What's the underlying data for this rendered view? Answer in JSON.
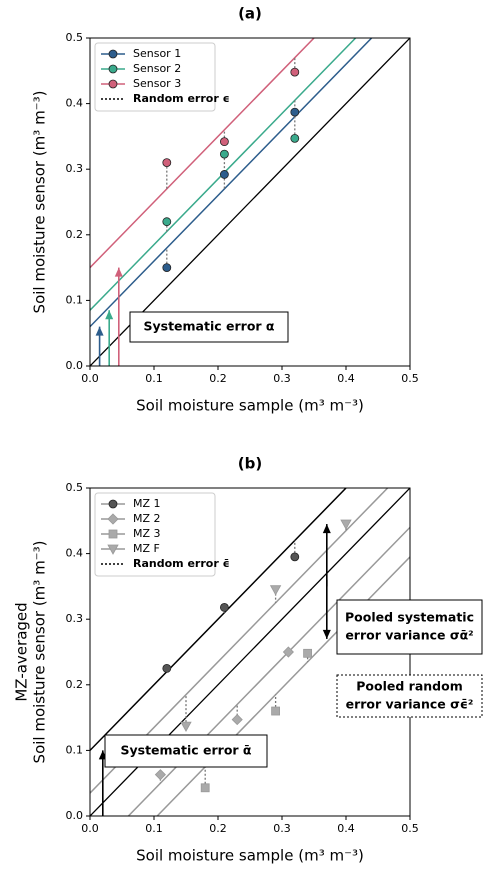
{
  "chart_data": [
    {
      "type": "scatter",
      "title": "(a)",
      "xlabel": "Soil moisture sample (m³ m⁻³)",
      "ylabel": [
        "Soil moisture sensor (m³ m⁻³)"
      ],
      "xlim": [
        0,
        0.5
      ],
      "ylim": [
        0,
        0.5
      ],
      "xticks": [
        {
          "value": 0,
          "label": "0.0"
        },
        0.1,
        0.2,
        0.3,
        0.4,
        0.5
      ],
      "yticks": [
        {
          "value": 0,
          "label": "0.0"
        },
        0.1,
        0.2,
        0.3,
        0.4,
        0.5
      ],
      "legend": "upper left",
      "one_to_one": true,
      "series": [
        {
          "name": "Sensor 1",
          "color": "#2d5d8c",
          "line_color": "#2d5d8c",
          "marker": "circle",
          "x": [
            0.12,
            0.21,
            0.32
          ],
          "values": [
            0.15,
            0.292,
            0.387
          ],
          "intercept": 0.06
        },
        {
          "name": "Sensor 2",
          "color": "#3aaa8c",
          "line_color": "#3aaa8c",
          "marker": "circle",
          "x": [
            0.12,
            0.21,
            0.32
          ],
          "values": [
            0.22,
            0.323,
            0.347
          ],
          "intercept": 0.085
        },
        {
          "name": "Sensor 3",
          "color": "#d0607a",
          "line_color": "#d0607a",
          "marker": "circle",
          "x": [
            0.12,
            0.21,
            0.32
          ],
          "values": [
            0.31,
            0.342,
            0.448
          ],
          "intercept": 0.15
        }
      ],
      "error_label": "Random error ϵ",
      "annotations": [
        [
          "Systematic error α"
        ]
      ]
    },
    {
      "type": "scatter",
      "title": "(b)",
      "xlabel": "Soil moisture sample (m³ m⁻³)",
      "ylabel": [
        "MZ-averaged",
        "Soil moisture sensor (m³ m⁻³)"
      ],
      "xlim": [
        0,
        0.5
      ],
      "ylim": [
        0,
        0.5
      ],
      "xticks": [
        {
          "value": 0,
          "label": "0.0"
        },
        0.1,
        0.2,
        0.3,
        0.4,
        0.5
      ],
      "yticks": [
        {
          "value": 0,
          "label": "0.0"
        },
        0.1,
        0.2,
        0.3,
        0.4,
        0.5
      ],
      "legend": "upper left",
      "one_to_one": true,
      "series": [
        {
          "name": "MZ 1",
          "color": "#555555",
          "line_color": "#000000",
          "marker": "circle",
          "x": [
            0.12,
            0.21,
            0.32
          ],
          "values": [
            0.225,
            0.318,
            0.395
          ],
          "intercept": 0.1
        },
        {
          "name": "MZ 2",
          "color": "#aaaaaa",
          "line_color": "#999999",
          "marker": "diamond",
          "x": [
            0.11,
            0.23,
            0.31
          ],
          "values": [
            0.063,
            0.147,
            0.25
          ],
          "intercept": -0.06
        },
        {
          "name": "MZ 3",
          "color": "#aaaaaa",
          "line_color": "#999999",
          "marker": "square",
          "x": [
            0.18,
            0.29,
            0.34
          ],
          "values": [
            0.043,
            0.16,
            0.248
          ],
          "intercept": -0.105
        },
        {
          "name": "MZ F",
          "color": "#aaaaaa",
          "line_color": "#999999",
          "marker": "triangle-down",
          "x": [
            0.15,
            0.29,
            0.4
          ],
          "values": [
            0.137,
            0.345,
            0.445
          ],
          "intercept": 0.035
        }
      ],
      "error_label": "Random error ϵ̄",
      "annotations": [
        [
          "Systematic error ᾱ"
        ],
        [
          "Pooled systematic",
          "error variance σᾱ²"
        ],
        [
          "Pooled random",
          "error variance σϵ̄²"
        ]
      ]
    }
  ]
}
